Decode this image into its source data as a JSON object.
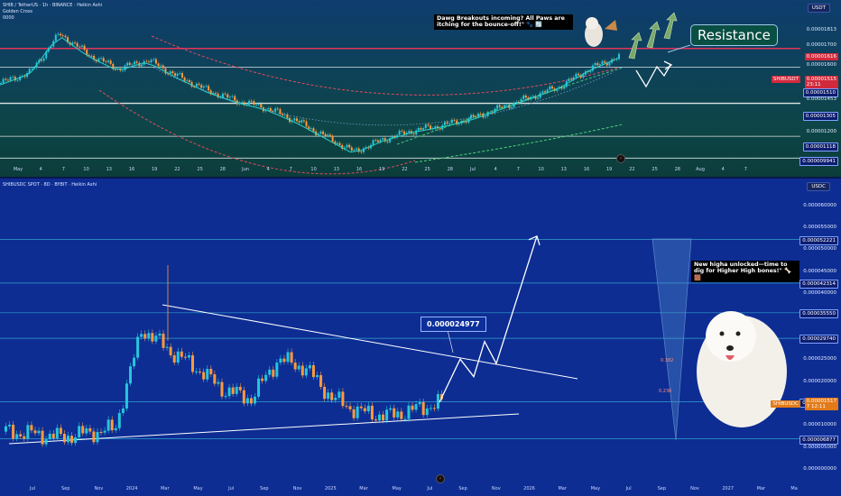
{
  "top_panel": {
    "title": "SHIB / TetherUS · 1h · BINANCE · Heikin Ashi",
    "indicator": "Golden Cross",
    "indicator_sub": "0000",
    "unit": "USDT",
    "callout": "Dawg Breakouts incoming? All Paws are itching for the bounce-off!\" 🐾 🔄",
    "resistance_label": "Resistance",
    "symbol_tag": "SHIBUSDT",
    "symbol_price": "0.00001515",
    "symbol_countdown": "23:11",
    "x_ticks": [
      "May",
      "4",
      "7",
      "10",
      "13",
      "16",
      "19",
      "22",
      "25",
      "28",
      "Jun",
      "4",
      "7",
      "10",
      "13",
      "16",
      "19",
      "22",
      "25",
      "28",
      "Jul",
      "4",
      "7",
      "10",
      "13",
      "16",
      "19",
      "22",
      "25",
      "28",
      "Aug",
      "4",
      "7"
    ],
    "y_labels": [
      {
        "text": "0.00001813",
        "style": "plain"
      },
      {
        "text": "0.00001700",
        "style": "plain"
      },
      {
        "text": "0.00001616",
        "style": "red"
      },
      {
        "text": "0.00001600",
        "style": "plain"
      },
      {
        "text": "0.00001510",
        "style": "boxed"
      },
      {
        "text": "0.00001453",
        "style": "plain"
      },
      {
        "text": "0.00001305",
        "style": "boxed"
      },
      {
        "text": "0.00001200",
        "style": "plain"
      },
      {
        "text": "0.00001118",
        "style": "boxed"
      },
      {
        "text": "0.000009941",
        "style": "boxed"
      }
    ]
  },
  "bottom_panel": {
    "title": "SHIBUSDC SPOT · 8D · BYBIT · Heikin Ashi",
    "unit": "USDC",
    "price_callout": "0.000024977",
    "callout": "New higha unlocked—time to dig for Higher High bones!\" 🦴 🟫",
    "symbol_tag": "SHIBUSDC",
    "symbol_price": "0.00001517",
    "symbol_countdown": "7 12:11",
    "x_ticks": [
      "Jul",
      "Sep",
      "Nov",
      "2024",
      "Mar",
      "May",
      "Jul",
      "Sep",
      "Nov",
      "2025",
      "Mar",
      "May",
      "Jul",
      "Sep",
      "Nov",
      "2026",
      "Mar",
      "May",
      "Jul",
      "Sep",
      "Nov",
      "2027",
      "Mar",
      "Ma"
    ],
    "y_labels": [
      {
        "text": "0.000060000",
        "style": "plain"
      },
      {
        "text": "0.000055000",
        "style": "plain"
      },
      {
        "text": "0.000052221",
        "style": "boxed"
      },
      {
        "text": "0.000050000",
        "style": "plain"
      },
      {
        "text": "0.000045000",
        "style": "plain"
      },
      {
        "text": "0.000042314",
        "style": "boxed"
      },
      {
        "text": "0.000040000",
        "style": "plain"
      },
      {
        "text": "0.000035000",
        "style": "plain"
      },
      {
        "text": "0.000035550",
        "style": "boxed"
      },
      {
        "text": "0.000029740",
        "style": "boxed"
      },
      {
        "text": "0.000025000",
        "style": "plain"
      },
      {
        "text": "0.000020000",
        "style": "plain"
      },
      {
        "text": "0.000015290",
        "style": "boxed"
      },
      {
        "text": "0.000010000",
        "style": "plain"
      },
      {
        "text": "0.000006877",
        "style": "boxed"
      },
      {
        "text": "0.000005000",
        "style": "plain"
      },
      {
        "text": "0.000000000",
        "style": "plain"
      }
    ],
    "fib_labels": [
      "0.382",
      "0.236"
    ]
  },
  "colors": {
    "bull": "#26c6da",
    "bear": "#ff9a3c",
    "ema": "#2bd0c8",
    "resistance": "#e0335a",
    "channel": "#e34b5c",
    "channel_green": "#4fd07a",
    "level_line": "#ffffff",
    "level_cyan": "#3ec7e0"
  },
  "chart_data": [
    {
      "type": "line",
      "title": "SHIB / TetherUS · 1h · BINANCE · Heikin Ashi",
      "x": [
        "May",
        "Jun",
        "Jul",
        "Aug"
      ],
      "approx_path": [
        1.42e-05,
        1.48e-05,
        1.7e-05,
        1.58e-05,
        1.5e-05,
        1.55e-05,
        1.46e-05,
        1.38e-05,
        1.32e-05,
        1.28e-05,
        1.21e-05,
        1.12e-05,
        1.03e-05,
        1.1e-05,
        1.15e-05,
        1.18e-05,
        1.22e-05,
        1.28e-05,
        1.34e-05,
        1.4e-05,
        1.5e-05,
        1.57e-05
      ],
      "levels": [
        1.616e-05,
        1.51e-05,
        1.305e-05,
        1.118e-05,
        9.941e-06
      ],
      "ylim": [
        9.6e-06,
        1.85e-05
      ]
    },
    {
      "type": "line",
      "title": "SHIBUSDC SPOT · 8D · BYBIT · Heikin Ashi",
      "x": [
        "Jul",
        "2024",
        "Jul",
        "2025",
        "Jul",
        "2026",
        "Jul",
        "2027"
      ],
      "approx_path": [
        8.5e-06,
        8e-06,
        7.2e-06,
        8.2e-06,
        9e-06,
        3.2e-05,
        2.7e-05,
        2.3e-05,
        1.8e-05,
        1.6e-05,
        2.5e-05,
        2.3e-05,
        1.6e-05,
        1.3e-05,
        1.2e-05,
        1.35e-05,
        1.517e-05
      ],
      "projection": [
        1.517e-05,
        2.5e-05,
        2.1e-05,
        2.9e-05,
        2.4e-05,
        5.3e-05
      ],
      "levels": [
        5.2221e-05,
        4.2314e-05,
        3.555e-05,
        2.974e-05,
        1.529e-05,
        6.877e-06
      ],
      "ylim": [
        0.0,
        6.2e-05
      ]
    }
  ]
}
